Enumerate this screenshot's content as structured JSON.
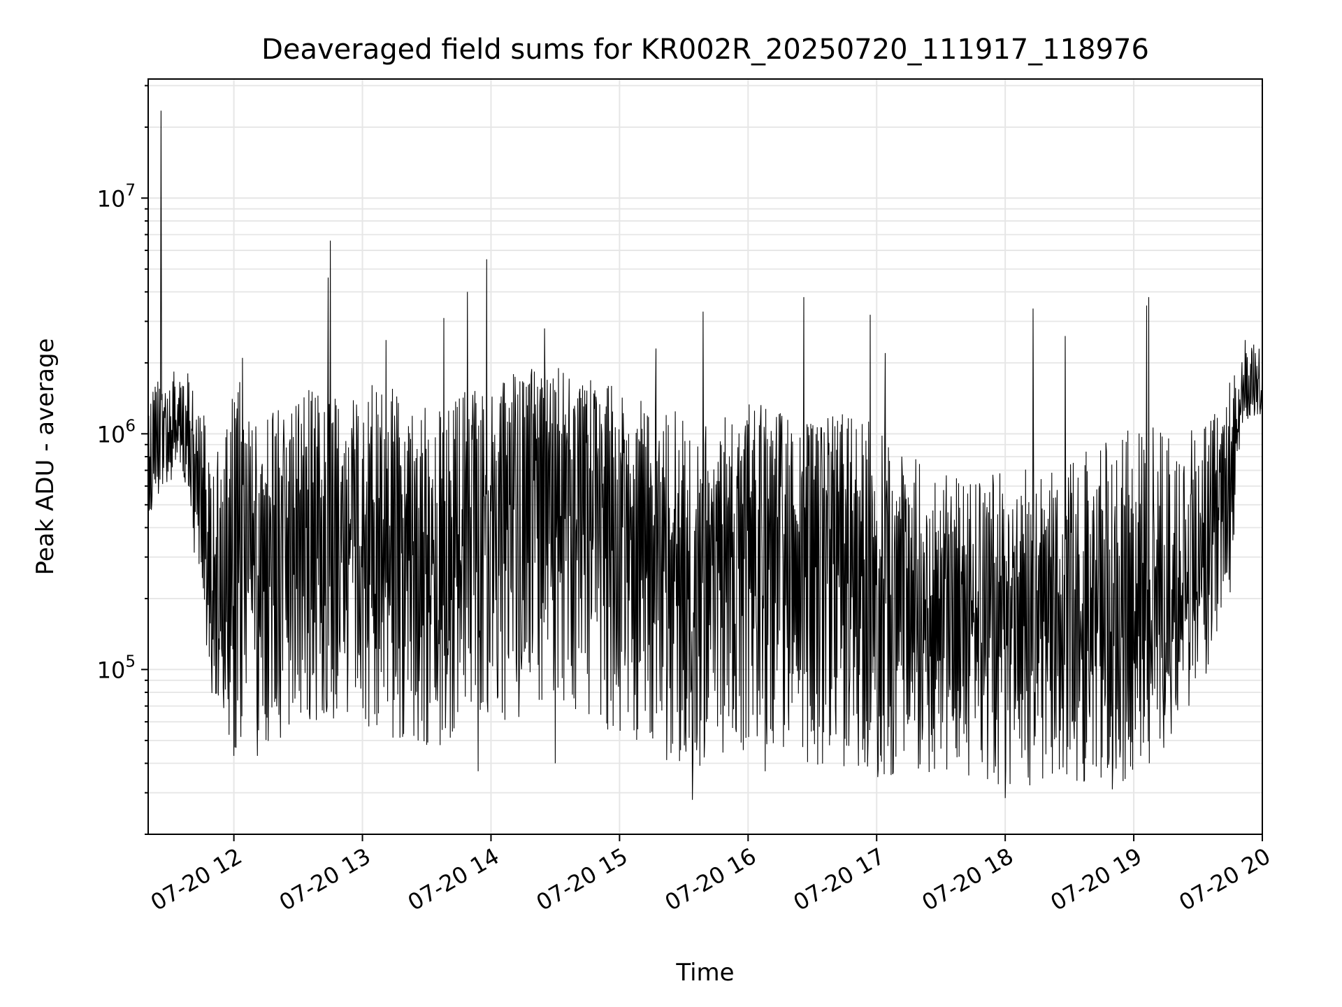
{
  "chart_data": {
    "type": "line",
    "title": "Deaveraged field sums for KR002R_20250720_111917_118976",
    "xlabel": "Time",
    "ylabel": "Peak ADU - average",
    "y_scale": "log",
    "ylim": [
      20000,
      32000000
    ],
    "xlim": [
      "2025-07-20 11:20",
      "2025-07-20 20:00"
    ],
    "grid": true,
    "line_color": "#000000",
    "grid_color": "#e6e6e6",
    "x_ticks": [
      {
        "label": "07-20 12",
        "time": "2025-07-20 12:00"
      },
      {
        "label": "07-20 13",
        "time": "2025-07-20 13:00"
      },
      {
        "label": "07-20 14",
        "time": "2025-07-20 14:00"
      },
      {
        "label": "07-20 15",
        "time": "2025-07-20 15:00"
      },
      {
        "label": "07-20 16",
        "time": "2025-07-20 16:00"
      },
      {
        "label": "07-20 17",
        "time": "2025-07-20 17:00"
      },
      {
        "label": "07-20 18",
        "time": "2025-07-20 18:00"
      },
      {
        "label": "07-20 19",
        "time": "2025-07-20 19:00"
      },
      {
        "label": "07-20 20",
        "time": "2025-07-20 20:00"
      }
    ],
    "y_ticks": [
      {
        "base": "10",
        "exp": "5",
        "value": 100000
      },
      {
        "base": "10",
        "exp": "6",
        "value": 1000000
      },
      {
        "base": "10",
        "exp": "7",
        "value": 10000000
      }
    ],
    "series": [
      {
        "x": [
          "2025-07-20 11:20",
          "2025-07-20 11:25",
          "2025-07-20 11:30",
          "2025-07-20 11:35",
          "2025-07-20 11:40",
          "2025-07-20 11:45",
          "2025-07-20 11:50",
          "2025-07-20 11:55",
          "2025-07-20 12:00",
          "2025-07-20 12:10",
          "2025-07-20 12:20",
          "2025-07-20 12:30",
          "2025-07-20 12:40",
          "2025-07-20 12:50",
          "2025-07-20 13:00",
          "2025-07-20 13:10",
          "2025-07-20 13:20",
          "2025-07-20 13:30",
          "2025-07-20 13:40",
          "2025-07-20 13:50",
          "2025-07-20 14:00",
          "2025-07-20 14:10",
          "2025-07-20 14:20",
          "2025-07-20 14:30",
          "2025-07-20 14:40",
          "2025-07-20 14:50",
          "2025-07-20 15:00",
          "2025-07-20 15:10",
          "2025-07-20 15:20",
          "2025-07-20 15:30",
          "2025-07-20 15:40",
          "2025-07-20 15:50",
          "2025-07-20 16:00",
          "2025-07-20 16:10",
          "2025-07-20 16:20",
          "2025-07-20 16:30",
          "2025-07-20 16:40",
          "2025-07-20 16:50",
          "2025-07-20 17:00",
          "2025-07-20 17:10",
          "2025-07-20 17:20",
          "2025-07-20 17:30",
          "2025-07-20 17:40",
          "2025-07-20 17:50",
          "2025-07-20 18:00",
          "2025-07-20 18:10",
          "2025-07-20 18:20",
          "2025-07-20 18:30",
          "2025-07-20 18:40",
          "2025-07-20 18:50",
          "2025-07-20 19:00",
          "2025-07-20 19:10",
          "2025-07-20 19:20",
          "2025-07-20 19:30",
          "2025-07-20 19:40",
          "2025-07-20 19:45",
          "2025-07-20 19:50",
          "2025-07-20 19:55",
          "2025-07-20 20:00"
        ],
        "y": [
          600000,
          900000,
          1000000,
          1100000,
          1000000,
          400000,
          200000,
          150000,
          250000,
          300000,
          350000,
          400000,
          450000,
          400000,
          350000,
          320000,
          380000,
          280000,
          300000,
          400000,
          550000,
          750000,
          850000,
          800000,
          700000,
          600000,
          500000,
          450000,
          350000,
          300000,
          320000,
          380000,
          420000,
          400000,
          350000,
          300000,
          320000,
          300000,
          250000,
          180000,
          170000,
          160000,
          150000,
          170000,
          180000,
          170000,
          160000,
          170000,
          180000,
          170000,
          160000,
          150000,
          180000,
          250000,
          400000,
          600000,
          1300000,
          1400000,
          1500000
        ],
        "low": [
          420000,
          500000,
          600000,
          700000,
          350000,
          200000,
          70000,
          60000,
          45000,
          50000,
          45000,
          55000,
          60000,
          55000,
          55000,
          50000,
          48000,
          42000,
          48000,
          52000,
          55000,
          60000,
          70000,
          80000,
          60000,
          55000,
          50000,
          48000,
          42000,
          32000,
          40000,
          40000,
          42000,
          45000,
          44000,
          38000,
          38000,
          37000,
          33000,
          35000,
          36000,
          35000,
          33000,
          34000,
          30000,
          32000,
          33000,
          34000,
          33000,
          34000,
          33000,
          40000,
          55000,
          70000,
          160000,
          200000,
          1100000,
          1150000,
          1200000
        ],
        "high": [
          1600000,
          1700000,
          1800000,
          1900000,
          1800000,
          1400000,
          900000,
          1300000,
          1900000,
          1200000,
          1300000,
          1500000,
          1600000,
          1400000,
          1700000,
          1600000,
          1500000,
          1400000,
          1300000,
          1700000,
          1500000,
          1800000,
          1900000,
          2000000,
          1800000,
          1700000,
          1600000,
          1500000,
          1200000,
          1300000,
          1100000,
          1200000,
          1400000,
          1300000,
          1200000,
          1100000,
          1300000,
          1200000,
          1100000,
          800000,
          800000,
          700000,
          650000,
          700000,
          800000,
          750000,
          700000,
          800000,
          900000,
          1000000,
          1100000,
          1200000,
          1000000,
          1100000,
          1300000,
          1800000,
          2300000,
          2400000,
          2400000
        ],
        "spikes": [
          {
            "x": "2025-07-20 11:26",
            "y": 23500000
          },
          {
            "x": "2025-07-20 12:04",
            "y": 2100000
          },
          {
            "x": "2025-07-20 12:44",
            "y": 4600000
          },
          {
            "x": "2025-07-20 12:45",
            "y": 6600000
          },
          {
            "x": "2025-07-20 13:11",
            "y": 2500000
          },
          {
            "x": "2025-07-20 13:38",
            "y": 3100000
          },
          {
            "x": "2025-07-20 13:49",
            "y": 4000000
          },
          {
            "x": "2025-07-20 13:58",
            "y": 5500000
          },
          {
            "x": "2025-07-20 14:25",
            "y": 2800000
          },
          {
            "x": "2025-07-20 15:17",
            "y": 2300000
          },
          {
            "x": "2025-07-20 15:39",
            "y": 3300000
          },
          {
            "x": "2025-07-20 16:26",
            "y": 3800000
          },
          {
            "x": "2025-07-20 16:57",
            "y": 3200000
          },
          {
            "x": "2025-07-20 17:04",
            "y": 2200000
          },
          {
            "x": "2025-07-20 18:13",
            "y": 3400000
          },
          {
            "x": "2025-07-20 18:28",
            "y": 2600000
          },
          {
            "x": "2025-07-20 19:06",
            "y": 3500000
          },
          {
            "x": "2025-07-20 19:07",
            "y": 3800000
          },
          {
            "x": "2025-07-20 19:52",
            "y": 2500000
          }
        ],
        "dips": [
          {
            "x": "2025-07-20 12:00",
            "y": 43000
          },
          {
            "x": "2025-07-20 12:11",
            "y": 43000
          },
          {
            "x": "2025-07-20 13:54",
            "y": 37000
          },
          {
            "x": "2025-07-20 14:30",
            "y": 40000
          },
          {
            "x": "2025-07-20 15:34",
            "y": 28000
          },
          {
            "x": "2025-07-20 16:08",
            "y": 37000
          },
          {
            "x": "2025-07-20 18:00",
            "y": 28500
          },
          {
            "x": "2025-07-20 18:50",
            "y": 31000
          }
        ]
      }
    ]
  }
}
